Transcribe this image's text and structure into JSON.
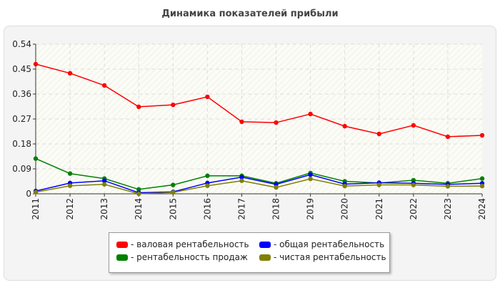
{
  "chart_data": {
    "type": "line",
    "title": "Динамика показателей прибыли",
    "x": [
      "2011",
      "2012",
      "2013",
      "2014",
      "2015",
      "2016",
      "2017",
      "2018",
      "2019",
      "2020",
      "2021",
      "2022",
      "2023",
      "2024"
    ],
    "ylim": [
      0,
      0.54
    ],
    "yticks": [
      "0",
      "0.09",
      "0.18",
      "0.27",
      "0.36",
      "0.45",
      "0.54"
    ],
    "grid": true,
    "legend_placement": "bottom",
    "series": [
      {
        "name": "- валовая рентабельность",
        "color": "#ff0000",
        "values": [
          0.468,
          0.435,
          0.391,
          0.314,
          0.321,
          0.35,
          0.26,
          0.257,
          0.288,
          0.244,
          0.216,
          0.247,
          0.206,
          0.211
        ]
      },
      {
        "name": "- общая рентабельность",
        "color": "#0000ff",
        "values": [
          0.01,
          0.039,
          0.047,
          0.004,
          0.007,
          0.039,
          0.06,
          0.034,
          0.069,
          0.035,
          0.04,
          0.038,
          0.034,
          0.038
        ]
      },
      {
        "name": "- рентабельность продаж",
        "color": "#008000",
        "values": [
          0.127,
          0.073,
          0.055,
          0.016,
          0.032,
          0.065,
          0.065,
          0.038,
          0.075,
          0.045,
          0.039,
          0.049,
          0.038,
          0.055
        ]
      },
      {
        "name": "- чистая рентабельность",
        "color": "#808000",
        "values": [
          0.006,
          0.029,
          0.034,
          0.0,
          0.005,
          0.029,
          0.047,
          0.023,
          0.054,
          0.028,
          0.032,
          0.032,
          0.027,
          0.028
        ]
      }
    ]
  }
}
